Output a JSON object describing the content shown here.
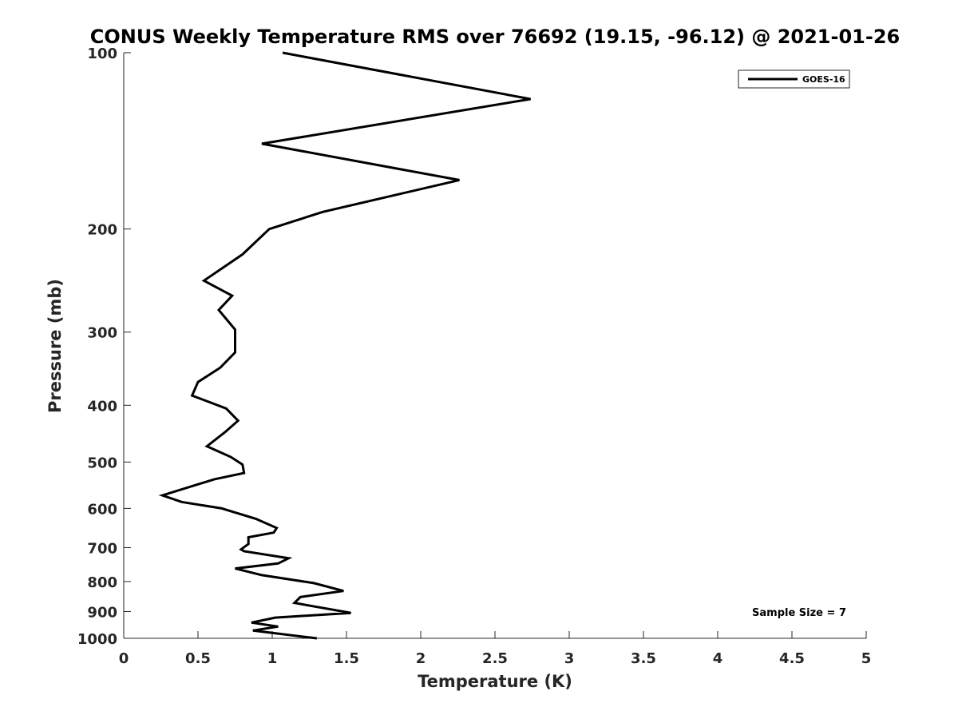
{
  "chart_data": {
    "type": "line",
    "title": "CONUS Weekly Temperature RMS over 76692 (19.15, -96.12) @ 2021-01-26",
    "xlabel": "Temperature (K)",
    "ylabel": "Pressure (mb)",
    "xlim": [
      0,
      5
    ],
    "ylim": [
      100,
      1000
    ],
    "y_scale": "log",
    "y_reversed": true,
    "x_ticks": [
      0,
      0.5,
      1,
      1.5,
      2,
      2.5,
      3,
      3.5,
      4,
      4.5,
      5
    ],
    "x_tick_labels": [
      "0",
      "0.5",
      "1",
      "1.5",
      "2",
      "2.5",
      "3",
      "3.5",
      "4",
      "4.5",
      "5"
    ],
    "y_ticks": [
      100,
      200,
      300,
      400,
      500,
      600,
      700,
      800,
      900,
      1000
    ],
    "y_tick_labels": [
      "100",
      "200",
      "300",
      "400",
      "500",
      "600",
      "700",
      "800",
      "900",
      "1000"
    ],
    "grid": false,
    "legend_position": "top-right",
    "annotation": "Sample Size = 7",
    "series": [
      {
        "name": "GOES-16",
        "color": "#000000",
        "x": [
          1.07,
          2.74,
          0.93,
          2.26,
          1.34,
          0.98,
          0.8,
          0.54,
          0.73,
          0.64,
          0.75,
          0.75,
          0.65,
          0.5,
          0.46,
          0.69,
          0.77,
          0.68,
          0.56,
          0.72,
          0.8,
          0.81,
          0.61,
          0.26,
          0.39,
          0.66,
          0.89,
          1.03,
          1.01,
          0.84,
          0.84,
          0.79,
          0.81,
          1.11,
          1.04,
          0.75,
          0.93,
          1.28,
          1.48,
          1.19,
          1.15,
          1.53,
          1.02,
          0.86,
          1.04,
          0.87,
          1.3
        ],
        "y": [
          100,
          120,
          143,
          165,
          187,
          200,
          221,
          245,
          260,
          275,
          297,
          325,
          345,
          365,
          385,
          405,
          425,
          445,
          470,
          490,
          505,
          522,
          535,
          570,
          585,
          600,
          625,
          648,
          660,
          672,
          690,
          705,
          710,
          730,
          745,
          760,
          780,
          805,
          830,
          850,
          870,
          905,
          922,
          940,
          955,
          970,
          1000
        ]
      }
    ]
  }
}
